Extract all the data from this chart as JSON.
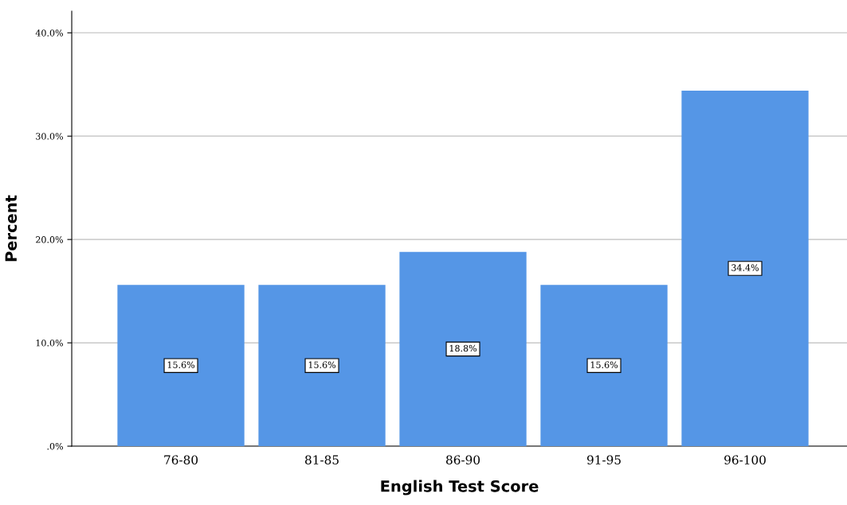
{
  "chart_data": {
    "type": "bar",
    "categories": [
      "76-80",
      "81-85",
      "86-90",
      "91-95",
      "96-100"
    ],
    "values": [
      15.6,
      15.6,
      18.8,
      15.6,
      34.4
    ],
    "value_labels": [
      "15.6%",
      "15.6%",
      "18.8%",
      "15.6%",
      "34.4%"
    ],
    "color": "#5596e6",
    "xlabel": "English Test Score",
    "ylabel": "Percent",
    "ylim": [
      0,
      42.1
    ],
    "yticks": [
      {
        "value": 0,
        "label": ".0%"
      },
      {
        "value": 10,
        "label": "10.0%"
      },
      {
        "value": 20,
        "label": "20.0%"
      },
      {
        "value": 30,
        "label": "30.0%"
      },
      {
        "value": 40,
        "label": "40.0%"
      }
    ],
    "grid": "y",
    "legend": false
  }
}
